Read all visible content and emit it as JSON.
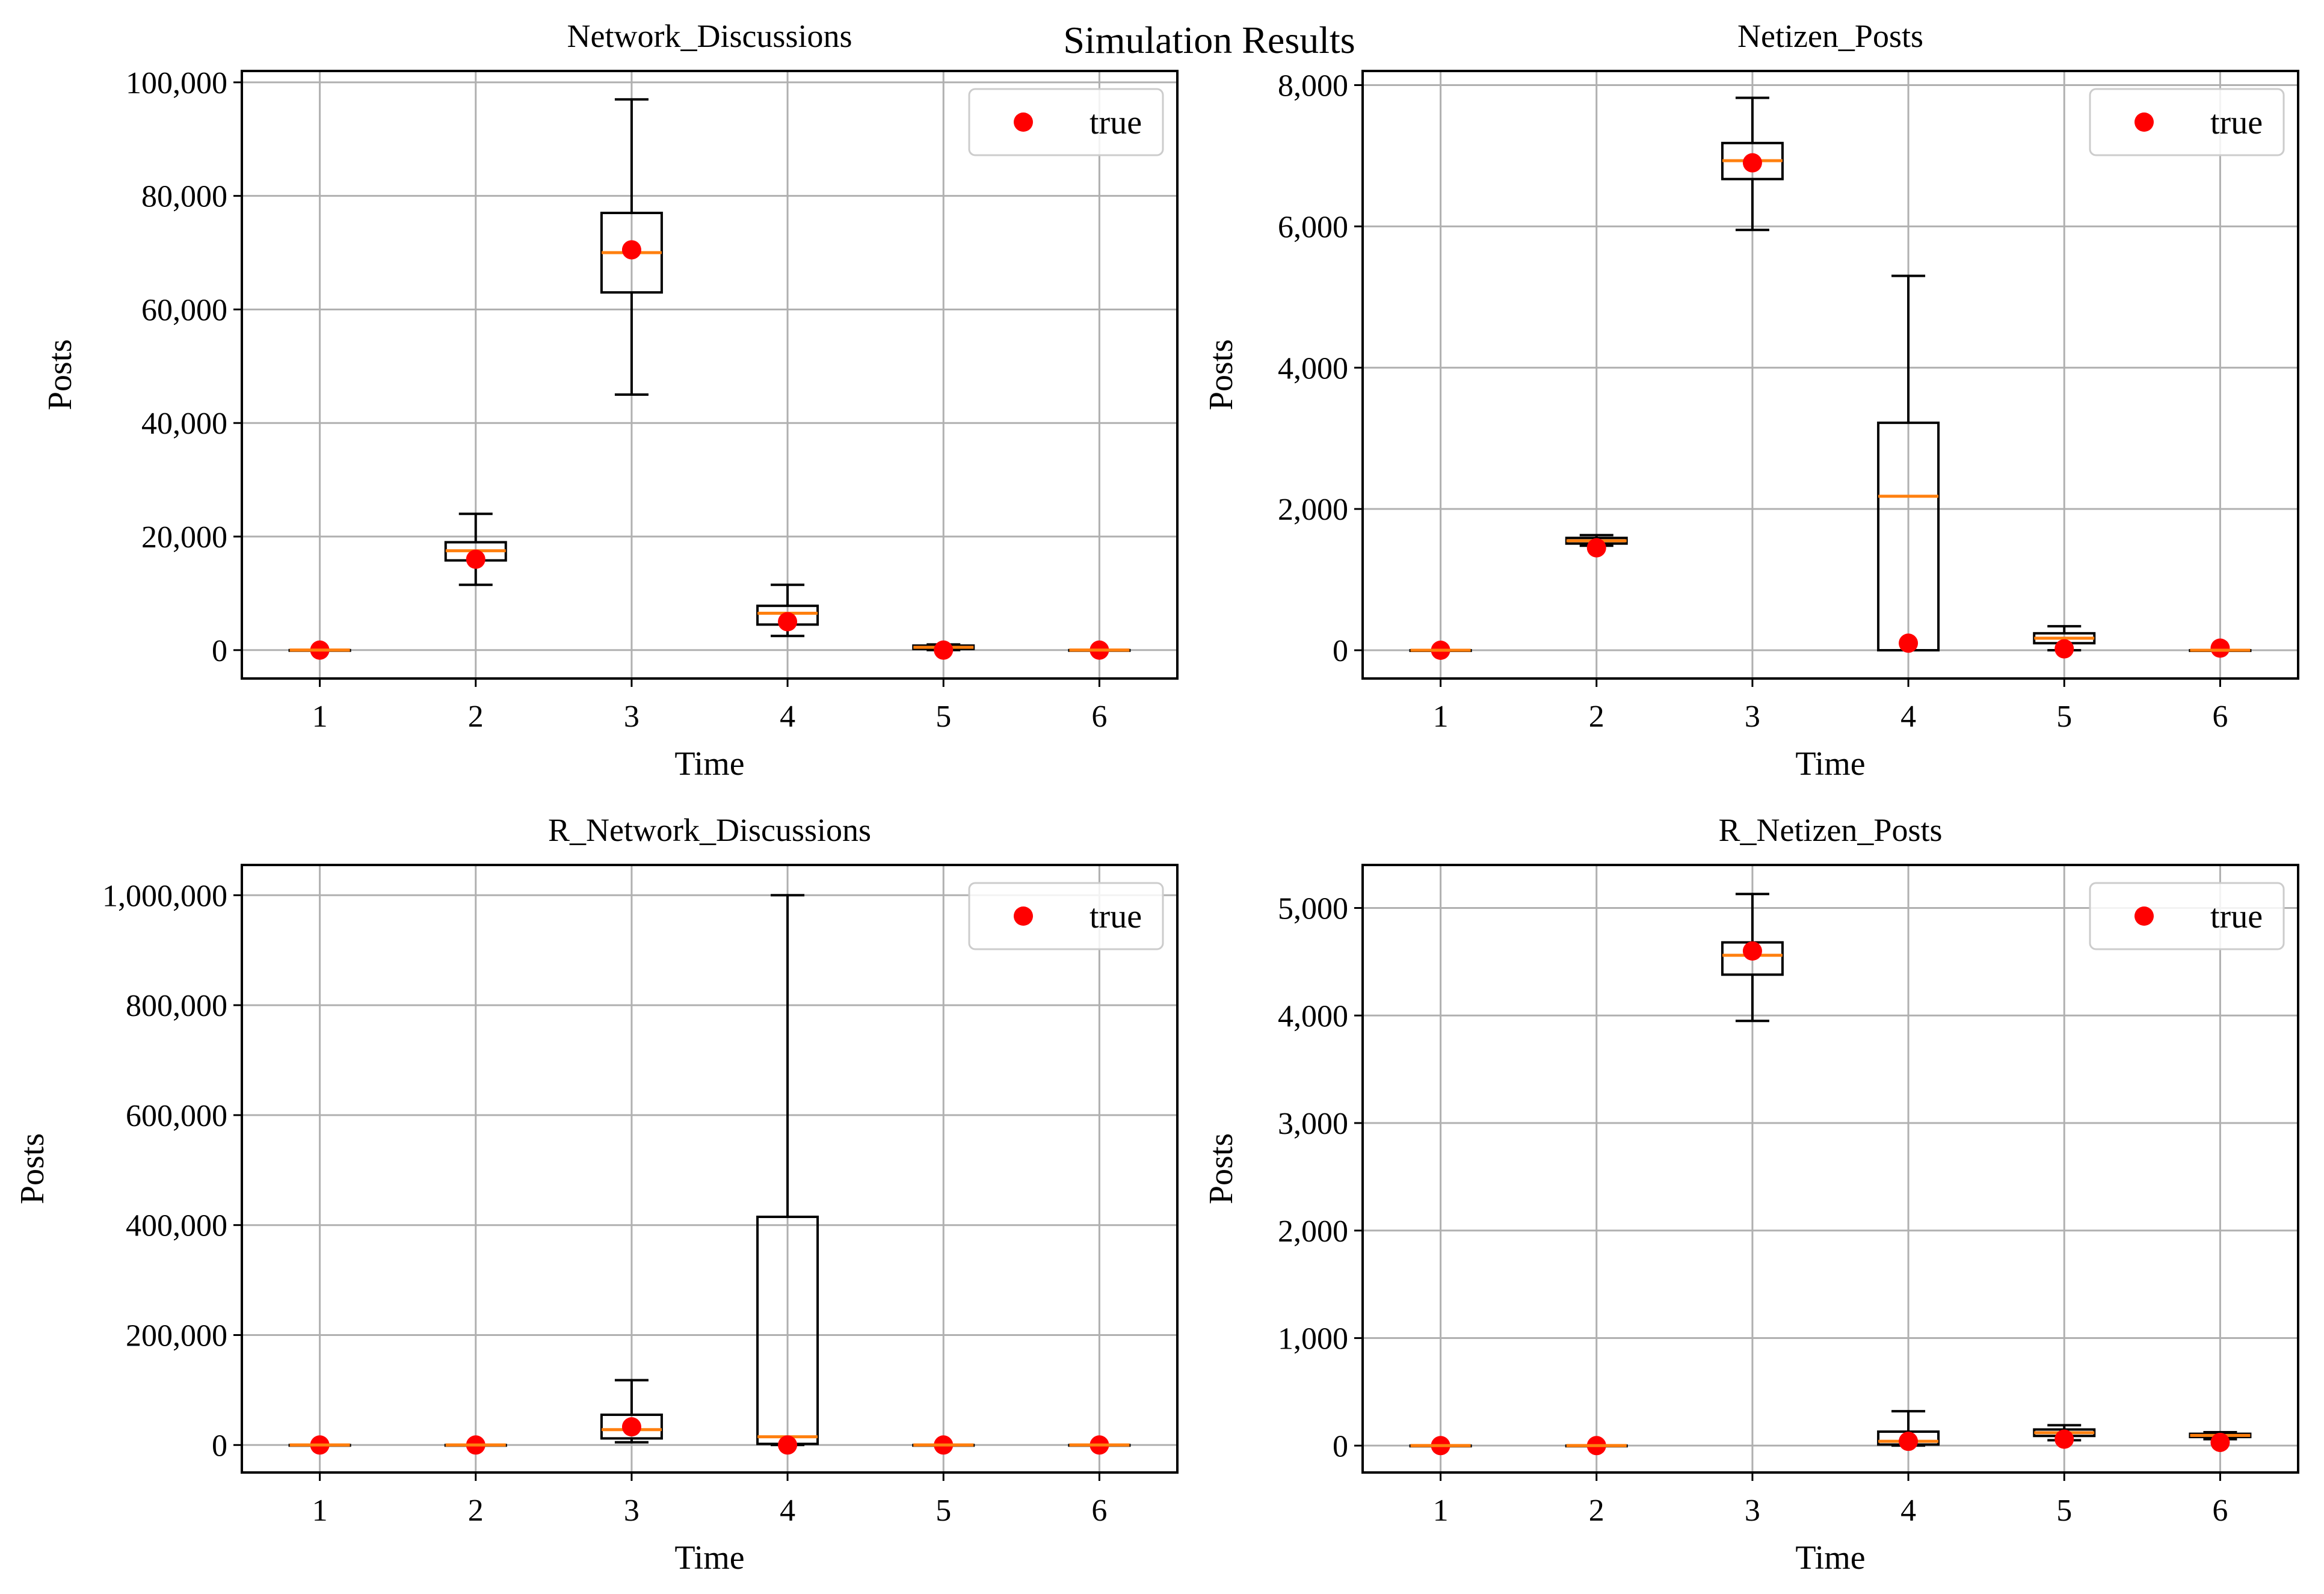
{
  "figure": {
    "suptitle": "Simulation Results"
  },
  "colors": {
    "grid": "#b0b0b0",
    "box": "#000000",
    "median": "#ff7f0e",
    "true_point": "#ff0000",
    "legend_border": "#cccccc"
  },
  "chart_data": [
    {
      "type": "box",
      "title": "Network_Discussions",
      "xlabel": "Time",
      "ylabel": "Posts",
      "categories": [
        "1",
        "2",
        "3",
        "4",
        "5",
        "6"
      ],
      "ylim": [
        -5000,
        102000
      ],
      "yticks": [
        0,
        20000,
        40000,
        60000,
        80000,
        100000
      ],
      "ytick_labels": [
        "0",
        "20,000",
        "40,000",
        "60,000",
        "80,000",
        "100,000"
      ],
      "grid": true,
      "legend": {
        "label": "true",
        "position": "top-right"
      },
      "boxes": [
        {
          "whislo": 0,
          "q1": 0,
          "med": 0,
          "q3": 0,
          "whishi": 0
        },
        {
          "whislo": 11500,
          "q1": 15800,
          "med": 17500,
          "q3": 19000,
          "whishi": 24000
        },
        {
          "whislo": 45000,
          "q1": 63000,
          "med": 70000,
          "q3": 77000,
          "whishi": 97000
        },
        {
          "whislo": 2500,
          "q1": 4500,
          "med": 6500,
          "q3": 7800,
          "whishi": 11500
        },
        {
          "whislo": 0,
          "q1": 200,
          "med": 500,
          "q3": 800,
          "whishi": 1000
        },
        {
          "whislo": 0,
          "q1": 0,
          "med": 0,
          "q3": 0,
          "whishi": 0
        }
      ],
      "true_values": [
        0,
        16000,
        70500,
        5000,
        0,
        0
      ]
    },
    {
      "type": "box",
      "title": "Netizen_Posts",
      "xlabel": "Time",
      "ylabel": "Posts",
      "categories": [
        "1",
        "2",
        "3",
        "4",
        "5",
        "6"
      ],
      "ylim": [
        -400,
        8200
      ],
      "yticks": [
        0,
        2000,
        4000,
        6000,
        8000
      ],
      "ytick_labels": [
        "0",
        "2,000",
        "4,000",
        "6,000",
        "8,000"
      ],
      "grid": true,
      "legend": {
        "label": "true",
        "position": "top-right"
      },
      "boxes": [
        {
          "whislo": 0,
          "q1": 0,
          "med": 0,
          "q3": 0,
          "whishi": 0
        },
        {
          "whislo": 1480,
          "q1": 1510,
          "med": 1550,
          "q3": 1590,
          "whishi": 1630
        },
        {
          "whislo": 5950,
          "q1": 6670,
          "med": 6930,
          "q3": 7180,
          "whishi": 7820
        },
        {
          "whislo": 0,
          "q1": 0,
          "med": 2180,
          "q3": 3220,
          "whishi": 5300
        },
        {
          "whislo": 0,
          "q1": 100,
          "med": 170,
          "q3": 240,
          "whishi": 340
        },
        {
          "whislo": 0,
          "q1": 0,
          "med": 0,
          "q3": 0,
          "whishi": 0
        }
      ],
      "true_values": [
        0,
        1450,
        6900,
        100,
        20,
        30
      ]
    },
    {
      "type": "box",
      "title": "R_Network_Discussions",
      "xlabel": "Time",
      "ylabel": "Posts",
      "categories": [
        "1",
        "2",
        "3",
        "4",
        "5",
        "6"
      ],
      "ylim": [
        -50000,
        1055000
      ],
      "yticks": [
        0,
        200000,
        400000,
        600000,
        800000,
        1000000
      ],
      "ytick_labels": [
        "0",
        "200,000",
        "400,000",
        "600,000",
        "800,000",
        "1,000,000"
      ],
      "grid": true,
      "legend": {
        "label": "true",
        "position": "top-right"
      },
      "boxes": [
        {
          "whislo": 0,
          "q1": 0,
          "med": 0,
          "q3": 0,
          "whishi": 0
        },
        {
          "whislo": 0,
          "q1": 0,
          "med": 0,
          "q3": 0,
          "whishi": 0
        },
        {
          "whislo": 5000,
          "q1": 12000,
          "med": 28000,
          "q3": 55000,
          "whishi": 118000
        },
        {
          "whislo": 0,
          "q1": 2000,
          "med": 15000,
          "q3": 415000,
          "whishi": 1000000
        },
        {
          "whislo": 0,
          "q1": 0,
          "med": 0,
          "q3": 0,
          "whishi": 0
        },
        {
          "whislo": 0,
          "q1": 0,
          "med": 0,
          "q3": 0,
          "whishi": 0
        }
      ],
      "true_values": [
        0,
        0,
        33000,
        0,
        0,
        0
      ]
    },
    {
      "type": "box",
      "title": "R_Netizen_Posts",
      "xlabel": "Time",
      "ylabel": "Posts",
      "categories": [
        "1",
        "2",
        "3",
        "4",
        "5",
        "6"
      ],
      "ylim": [
        -250,
        5400
      ],
      "yticks": [
        0,
        1000,
        2000,
        3000,
        4000,
        5000
      ],
      "ytick_labels": [
        "0",
        "1,000",
        "2,000",
        "3,000",
        "4,000",
        "5,000"
      ],
      "grid": true,
      "legend": {
        "label": "true",
        "position": "top-right"
      },
      "boxes": [
        {
          "whislo": 0,
          "q1": 0,
          "med": 0,
          "q3": 0,
          "whishi": 0
        },
        {
          "whislo": 0,
          "q1": 0,
          "med": 0,
          "q3": 0,
          "whishi": 0
        },
        {
          "whislo": 3950,
          "q1": 4380,
          "med": 4560,
          "q3": 4680,
          "whishi": 5130
        },
        {
          "whislo": 0,
          "q1": 10,
          "med": 40,
          "q3": 130,
          "whishi": 320
        },
        {
          "whislo": 50,
          "q1": 90,
          "med": 120,
          "q3": 150,
          "whishi": 190
        },
        {
          "whislo": 60,
          "q1": 80,
          "med": 95,
          "q3": 110,
          "whishi": 125
        }
      ],
      "true_values": [
        0,
        0,
        4600,
        40,
        60,
        30
      ]
    }
  ]
}
